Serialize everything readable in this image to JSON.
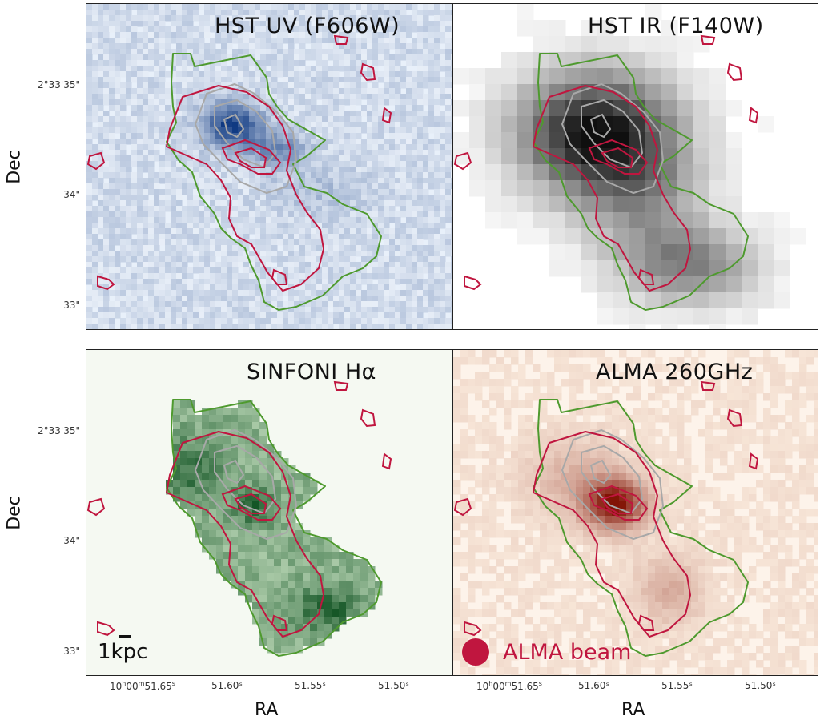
{
  "panels": [
    {
      "title": "HST UV (F606W)",
      "cmap": "blue"
    },
    {
      "title": "HST IR (F140W)",
      "cmap": "gray"
    },
    {
      "title": "SINFONI Hα",
      "cmap": "green"
    },
    {
      "title": "ALMA 260GHz",
      "cmap": "orange"
    }
  ],
  "axes": {
    "ylabel": "Dec",
    "xlabel": "RA",
    "yticks": [
      "2°33'35\"",
      "34\"",
      "33\""
    ],
    "xticks_first": "10h00m51.65s",
    "xticks": [
      "51.60ˢ",
      "51.55ˢ",
      "51.50ˢ"
    ],
    "xtick_first_parts": {
      "h": "10",
      "m": "00",
      "s": "51.65"
    }
  },
  "annotations": {
    "scale_label": "1kpc",
    "beam_label": "ALMA beam"
  },
  "colors": {
    "contour_green": "#4e9a2e",
    "contour_red": "#c0163f",
    "contour_gray": "#a8a8a8",
    "beam": "#c0163f"
  }
}
